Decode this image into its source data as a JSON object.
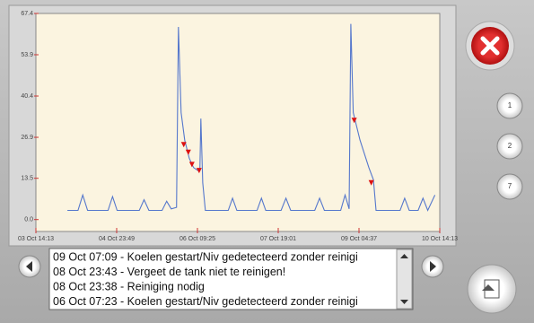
{
  "chart_data": {
    "type": "line",
    "xlim": [
      0,
      168
    ],
    "ylim": [
      -3.9,
      67.4
    ],
    "xticks": [
      {
        "value": 0,
        "label": "03 Oct 14:13"
      },
      {
        "value": 33.6,
        "label": "04 Oct 23:49"
      },
      {
        "value": 67.2,
        "label": "06 Oct 09:25"
      },
      {
        "value": 100.8,
        "label": "07 Oct 19:01"
      },
      {
        "value": 134.4,
        "label": "09 Oct 04:37"
      },
      {
        "value": 168,
        "label": "10 Oct 14:13"
      }
    ],
    "yticks": [
      {
        "value": 0,
        "label": "0.0"
      },
      13.5,
      26.9,
      40.4,
      53.9,
      67.4
    ],
    "grid": false,
    "series": [
      {
        "color": "#5577cc",
        "x": [
          13.1,
          17.5,
          19.5,
          21.5,
          30,
          31.9,
          33.8,
          43,
          45,
          47,
          52.5,
          54.4,
          56.3,
          58.5,
          59.3,
          60.4,
          61.9,
          63.8,
          65.6,
          67.5,
          68.2,
          68.6,
          69.4,
          70.5,
          80,
          81.8,
          83.6,
          92,
          93.8,
          95.6,
          102,
          104,
          106,
          116,
          118,
          120,
          126.8,
          128.6,
          130.3,
          131,
          132,
          134.8,
          138.5,
          140.4,
          141.5,
          151.5,
          153.4,
          155.3,
          159,
          161,
          163,
          166
        ],
        "values": [
          3,
          3,
          8,
          3,
          3,
          7.5,
          3,
          3,
          6.5,
          3,
          3,
          6,
          3.5,
          4,
          63,
          35,
          26,
          20,
          17,
          16,
          16,
          33,
          12,
          3,
          3,
          7,
          3,
          3,
          7,
          3,
          3,
          7,
          3,
          3,
          7,
          3,
          3,
          8,
          3.5,
          64,
          35,
          26,
          17,
          13,
          3,
          3,
          7,
          3,
          3,
          7,
          3,
          8
        ]
      },
      {
        "color": "#dd1111",
        "x": [
          61.5,
          63.4,
          64.9,
          67.9,
          132.4,
          139.5
        ],
        "values": [
          24.5,
          22,
          18,
          16,
          32.4,
          12
        ]
      }
    ]
  },
  "log": [
    "09 Oct 07:09 - Koelen gestart/Niv gedetecteerd zonder reinigi",
    "08 Oct 23:43 - Vergeet de tank niet te reinigen!",
    "08 Oct 23:38 - Reiniging nodig",
    "06 Oct 07:23 - Koelen gestart/Niv gedetecteerd zonder reinigi"
  ],
  "buttons": [
    "1",
    "2",
    "7"
  ]
}
